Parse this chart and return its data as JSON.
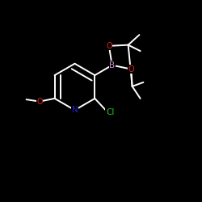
{
  "background_color": "#000000",
  "bond_color": "#ffffff",
  "atom_colors": {
    "B": "#cc88cc",
    "O": "#dd2222",
    "N": "#2222cc",
    "Cl": "#22cc22",
    "C": "#ffffff"
  },
  "figsize": [
    2.5,
    2.5
  ],
  "dpi": 100
}
